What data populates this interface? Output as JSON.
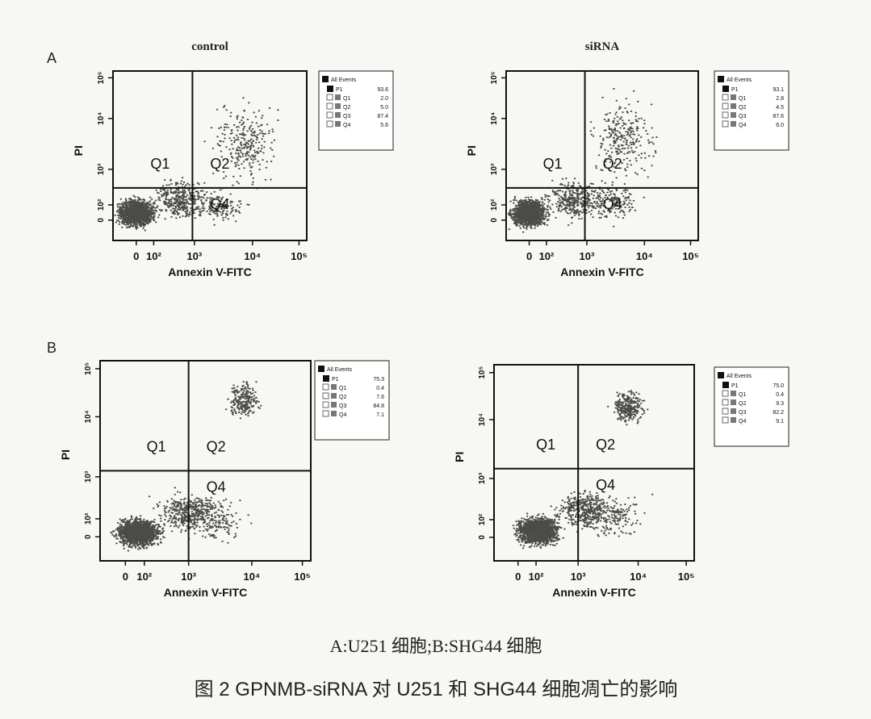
{
  "figure": {
    "panels": [
      {
        "row_label": "A",
        "title": "control",
        "x_label": "Annexin V-FITC",
        "y_label": "PI",
        "x_ticks": [
          "0",
          "10²",
          "10³",
          "10⁴",
          "10⁵"
        ],
        "y_ticks": [
          "0",
          "10²",
          "10³",
          "10⁴",
          "10⁵"
        ],
        "quadrants": [
          "Q1",
          "Q2",
          "Q4"
        ],
        "legend": {
          "header": "All Events",
          "gate": "P1",
          "gate_value": "93.6",
          "entries": [
            {
              "name": "Q1",
              "value": "2.0"
            },
            {
              "name": "Q2",
              "value": "5.0"
            },
            {
              "name": "Q3",
              "value": "87.4"
            },
            {
              "name": "Q4",
              "value": "5.6"
            }
          ]
        }
      },
      {
        "title": "siRNA",
        "x_label": "Annexin V-FITC",
        "y_label": "PI",
        "x_ticks": [
          "0",
          "10²",
          "10³",
          "10⁴",
          "10⁵"
        ],
        "y_ticks": [
          "0",
          "10²",
          "10³",
          "10⁴",
          "10⁵"
        ],
        "quadrants": [
          "Q1",
          "Q2",
          "Q4"
        ],
        "legend": {
          "header": "All Events",
          "gate": "P1",
          "gate_value": "93.1",
          "entries": [
            {
              "name": "Q1",
              "value": "2.8"
            },
            {
              "name": "Q2",
              "value": "4.5"
            },
            {
              "name": "Q3",
              "value": "87.6"
            },
            {
              "name": "Q4",
              "value": "6.0"
            }
          ]
        }
      },
      {
        "row_label": "B",
        "x_label": "Annexin V-FITC",
        "y_label": "PI",
        "x_ticks": [
          "0",
          "10²",
          "10³",
          "10⁴",
          "10⁵"
        ],
        "y_ticks": [
          "0",
          "10²",
          "10³",
          "10⁴",
          "10⁵"
        ],
        "quadrants": [
          "Q1",
          "Q2",
          "Q4"
        ],
        "legend": {
          "header": "All Events",
          "gate": "P1",
          "gate_value": "75.3",
          "entries": [
            {
              "name": "Q1",
              "value": "0.4"
            },
            {
              "name": "Q2",
              "value": "7.6"
            },
            {
              "name": "Q3",
              "value": "84.8"
            },
            {
              "name": "Q4",
              "value": "7.1"
            }
          ]
        }
      },
      {
        "x_label": "Annexin V-FITC",
        "y_label": "PI",
        "x_ticks": [
          "0",
          "10²",
          "10³",
          "10⁴",
          "10⁵"
        ],
        "y_ticks": [
          "0",
          "10²",
          "10³",
          "10⁴",
          "10⁵"
        ],
        "quadrants": [
          "Q1",
          "Q2",
          "Q4"
        ],
        "legend": {
          "header": "All Events",
          "gate": "P1",
          "gate_value": "75.0",
          "entries": [
            {
              "name": "Q1",
              "value": "0.4"
            },
            {
              "name": "Q2",
              "value": "9.3"
            },
            {
              "name": "Q3",
              "value": "82.2"
            },
            {
              "name": "Q4",
              "value": "9.1"
            }
          ]
        }
      }
    ],
    "subcaption": "A:U251 细胞;B:SHG44 细胞",
    "caption": "图 2  GPNMB-siRNA 对 U251 和 SHG44 细胞凋亡的影响"
  }
}
